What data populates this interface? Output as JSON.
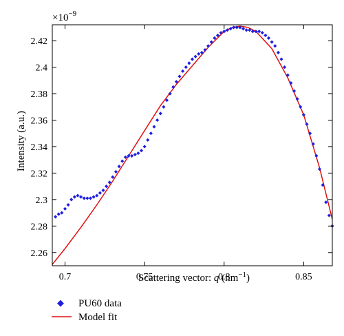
{
  "chart_data": {
    "type": "scatter",
    "xlabel": "Scattering vector: ",
    "xlabel_var": "q",
    "xlabel_unit": " (nm",
    "xlabel_unit_exp": "−1",
    "xlabel_unit_close": ")",
    "ylabel": "Intensity (a.u.)",
    "y_scale_label": "×10",
    "y_scale_exp": "−9",
    "xlim": [
      0.692,
      0.868
    ],
    "ylim": [
      2.25,
      2.432
    ],
    "x_ticks": [
      0.7,
      0.75,
      0.8,
      0.85
    ],
    "x_tick_labels": [
      "0.7",
      "0.75",
      "0.8",
      "0.85"
    ],
    "y_ticks": [
      2.26,
      2.28,
      2.3,
      2.32,
      2.34,
      2.36,
      2.38,
      2.4,
      2.42
    ],
    "y_tick_labels": [
      "2.26",
      "2.28",
      "2.3",
      "2.32",
      "2.34",
      "2.36",
      "2.38",
      "2.4",
      "2.42"
    ],
    "legend_placement": "below",
    "series": [
      {
        "name": "PU60 data",
        "kind": "scatter",
        "color": "#1f1fe0",
        "x": [
          0.694,
          0.696,
          0.698,
          0.7,
          0.702,
          0.704,
          0.706,
          0.708,
          0.71,
          0.712,
          0.714,
          0.716,
          0.718,
          0.72,
          0.722,
          0.724,
          0.726,
          0.728,
          0.73,
          0.732,
          0.734,
          0.736,
          0.738,
          0.74,
          0.742,
          0.744,
          0.746,
          0.748,
          0.75,
          0.752,
          0.754,
          0.756,
          0.758,
          0.76,
          0.762,
          0.764,
          0.766,
          0.768,
          0.77,
          0.772,
          0.774,
          0.776,
          0.778,
          0.78,
          0.782,
          0.784,
          0.786,
          0.788,
          0.79,
          0.792,
          0.794,
          0.796,
          0.798,
          0.8,
          0.802,
          0.804,
          0.806,
          0.808,
          0.81,
          0.812,
          0.814,
          0.816,
          0.818,
          0.82,
          0.822,
          0.824,
          0.826,
          0.828,
          0.83,
          0.832,
          0.834,
          0.836,
          0.838,
          0.84,
          0.842,
          0.844,
          0.846,
          0.848,
          0.85,
          0.852,
          0.854,
          0.856,
          0.858,
          0.86,
          0.862,
          0.864,
          0.866,
          0.868
        ],
        "y": [
          2.287,
          2.289,
          2.29,
          2.293,
          2.296,
          2.3,
          2.302,
          2.303,
          2.302,
          2.301,
          2.301,
          2.301,
          2.302,
          2.303,
          2.305,
          2.307,
          2.31,
          2.313,
          2.317,
          2.321,
          2.325,
          2.329,
          2.332,
          2.333,
          2.333,
          2.334,
          2.335,
          2.337,
          2.34,
          2.345,
          2.35,
          2.355,
          2.36,
          2.365,
          2.37,
          2.375,
          2.38,
          2.385,
          2.389,
          2.393,
          2.397,
          2.4,
          2.403,
          2.406,
          2.408,
          2.41,
          2.411,
          2.413,
          2.416,
          2.419,
          2.422,
          2.424,
          2.426,
          2.427,
          2.428,
          2.429,
          2.43,
          2.43,
          2.43,
          2.429,
          2.428,
          2.428,
          2.427,
          2.427,
          2.427,
          2.426,
          2.424,
          2.422,
          2.419,
          2.416,
          2.411,
          2.406,
          2.4,
          2.394,
          2.388,
          2.382,
          2.376,
          2.37,
          2.364,
          2.357,
          2.35,
          2.342,
          2.333,
          2.323,
          2.311,
          2.298,
          2.288,
          2.28
        ]
      },
      {
        "name": "Model fit",
        "kind": "line",
        "color": "#e01010",
        "x": [
          0.692,
          0.7,
          0.71,
          0.72,
          0.73,
          0.74,
          0.75,
          0.76,
          0.77,
          0.78,
          0.79,
          0.8,
          0.805,
          0.81,
          0.815,
          0.82,
          0.83,
          0.84,
          0.85,
          0.86,
          0.868
        ],
        "y": [
          2.251,
          2.263,
          2.279,
          2.296,
          2.314,
          2.333,
          2.352,
          2.371,
          2.387,
          2.401,
          2.415,
          2.427,
          2.43,
          2.431,
          2.43,
          2.427,
          2.414,
          2.392,
          2.364,
          2.324,
          2.285
        ]
      }
    ]
  }
}
